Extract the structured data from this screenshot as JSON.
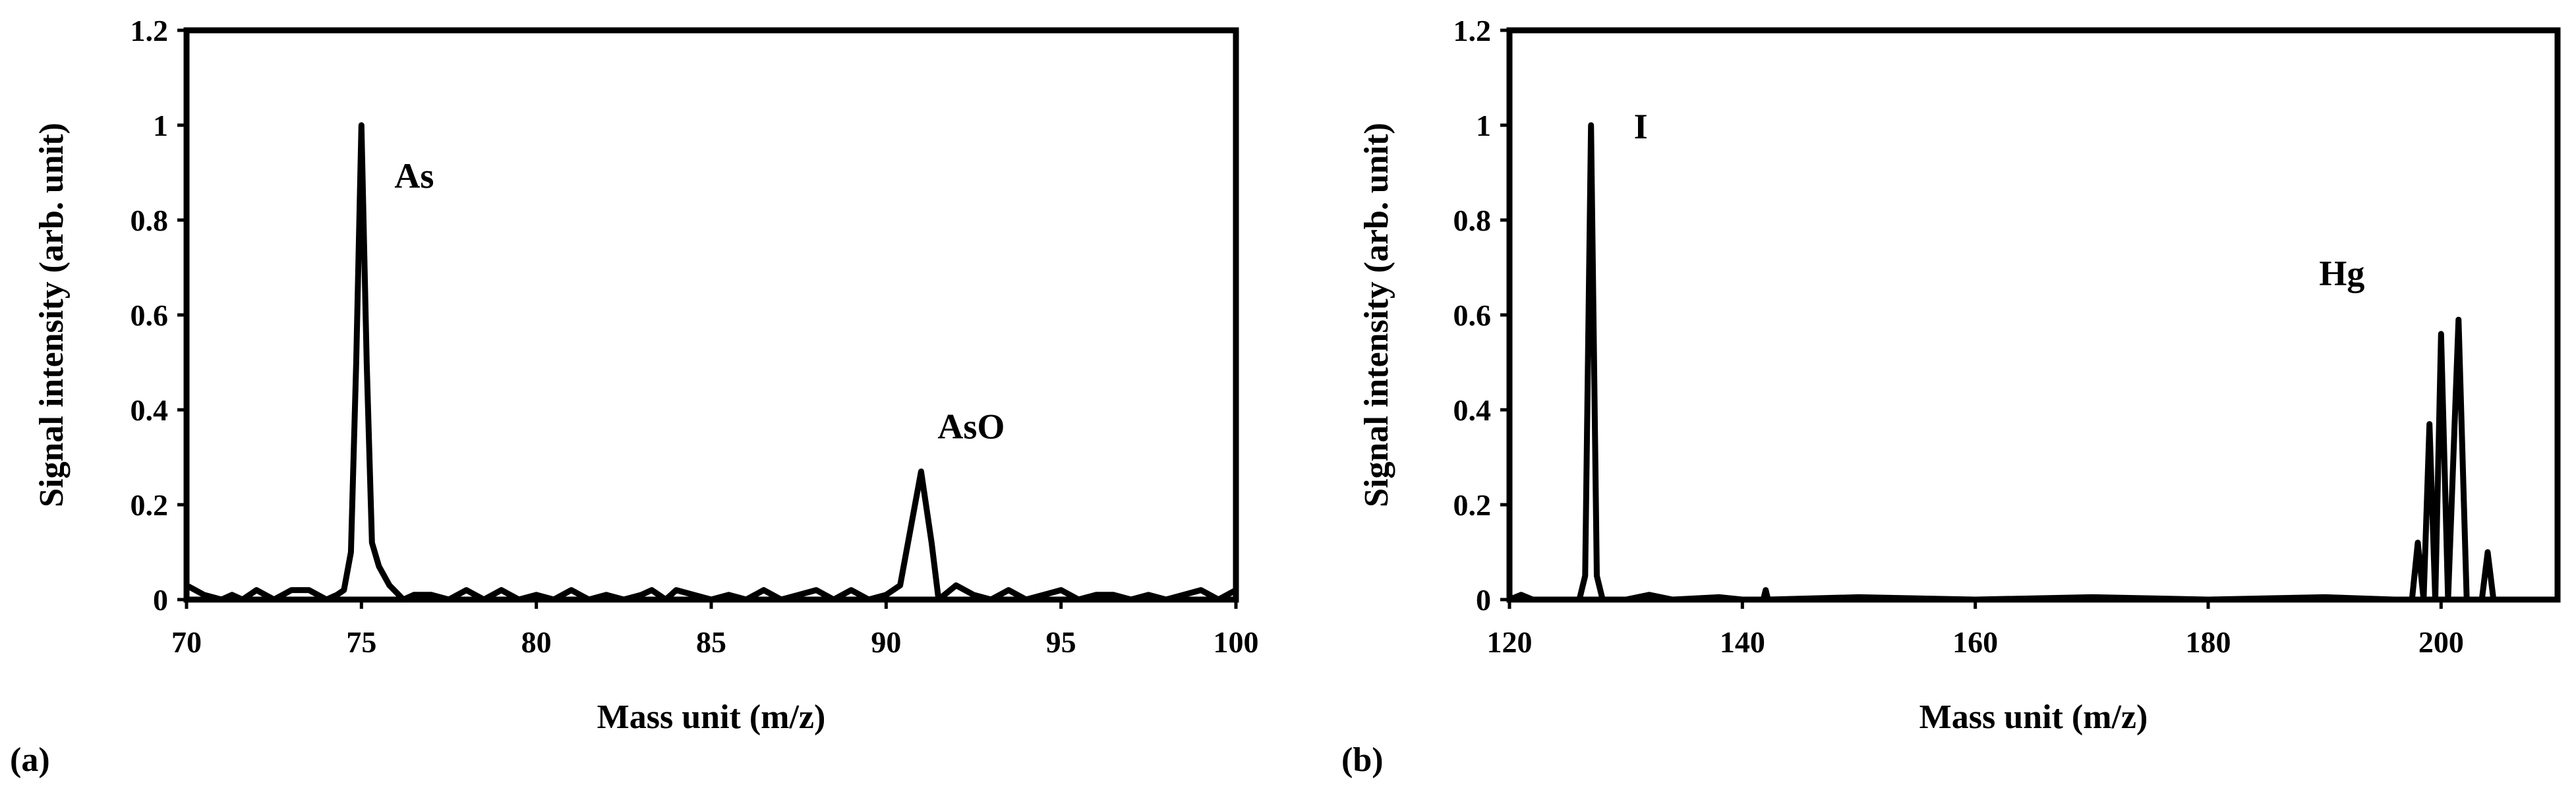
{
  "figure": {
    "panels": [
      "(a)",
      "(b)"
    ]
  },
  "chart_data": [
    {
      "type": "line",
      "panel_label": "(a)",
      "title": "",
      "xlabel": "Mass unit (m/z)",
      "ylabel": "Signal intensity (arb. unit)",
      "xlim": [
        70,
        100
      ],
      "ylim": [
        0,
        1.2
      ],
      "xticks": [
        70,
        75,
        80,
        85,
        90,
        95,
        100
      ],
      "yticks": [
        0,
        0.2,
        0.4,
        0.6,
        0.8,
        1,
        1.2
      ],
      "ytick_labels": [
        "0",
        "0.2",
        "0.4",
        "0.6",
        "0.8",
        "1",
        "1.2"
      ],
      "grid": false,
      "legend": "none",
      "annotations": [
        {
          "text": "As",
          "x": 75,
          "y": 1.0
        },
        {
          "text": "AsO",
          "x": 91,
          "y": 0.27
        }
      ],
      "series": [
        {
          "color": "#000000",
          "points": [
            [
              70,
              0.03
            ],
            [
              70.5,
              0.01
            ],
            [
              71,
              0.0
            ],
            [
              71.3,
              0.01
            ],
            [
              71.6,
              0.0
            ],
            [
              72,
              0.02
            ],
            [
              72.5,
              0.0
            ],
            [
              73,
              0.02
            ],
            [
              73.5,
              0.02
            ],
            [
              74,
              0.0
            ],
            [
              74.3,
              0.01
            ],
            [
              74.5,
              0.02
            ],
            [
              74.7,
              0.1
            ],
            [
              74.85,
              0.5
            ],
            [
              75,
              1.0
            ],
            [
              75.15,
              0.5
            ],
            [
              75.3,
              0.12
            ],
            [
              75.5,
              0.07
            ],
            [
              75.8,
              0.03
            ],
            [
              76.2,
              0.0
            ],
            [
              76.5,
              0.01
            ],
            [
              77,
              0.01
            ],
            [
              77.5,
              0.0
            ],
            [
              78,
              0.02
            ],
            [
              78.5,
              0.0
            ],
            [
              79,
              0.02
            ],
            [
              79.5,
              0.0
            ],
            [
              80,
              0.01
            ],
            [
              80.5,
              0.0
            ],
            [
              81,
              0.02
            ],
            [
              81.5,
              0.0
            ],
            [
              82,
              0.01
            ],
            [
              82.5,
              0.0
            ],
            [
              83,
              0.01
            ],
            [
              83.3,
              0.02
            ],
            [
              83.7,
              0.0
            ],
            [
              84,
              0.02
            ],
            [
              84.5,
              0.01
            ],
            [
              85,
              0.0
            ],
            [
              85.5,
              0.01
            ],
            [
              86,
              0.0
            ],
            [
              86.5,
              0.02
            ],
            [
              87,
              0.0
            ],
            [
              87.5,
              0.01
            ],
            [
              88,
              0.02
            ],
            [
              88.5,
              0.0
            ],
            [
              89,
              0.02
            ],
            [
              89.5,
              0.0
            ],
            [
              90,
              0.01
            ],
            [
              90.4,
              0.03
            ],
            [
              90.7,
              0.15
            ],
            [
              91,
              0.27
            ],
            [
              91.3,
              0.12
            ],
            [
              91.5,
              0.0
            ],
            [
              92,
              0.03
            ],
            [
              92.5,
              0.01
            ],
            [
              93,
              0.0
            ],
            [
              93.5,
              0.02
            ],
            [
              94,
              0.0
            ],
            [
              94.5,
              0.01
            ],
            [
              95,
              0.02
            ],
            [
              95.5,
              0.0
            ],
            [
              96,
              0.01
            ],
            [
              96.5,
              0.01
            ],
            [
              97,
              0.0
            ],
            [
              97.5,
              0.01
            ],
            [
              98,
              0.0
            ],
            [
              98.5,
              0.01
            ],
            [
              99,
              0.02
            ],
            [
              99.5,
              0.0
            ],
            [
              100,
              0.02
            ]
          ]
        }
      ]
    },
    {
      "type": "line",
      "panel_label": "(b)",
      "title": "",
      "xlabel": "Mass unit (m/z)",
      "ylabel": "Signal intensity (arb. unit)",
      "xlim": [
        120,
        210
      ],
      "ylim": [
        0,
        1.2
      ],
      "xticks": [
        120,
        140,
        160,
        180,
        200
      ],
      "yticks": [
        0,
        0.2,
        0.4,
        0.6,
        0.8,
        1,
        1.2
      ],
      "ytick_labels": [
        "0",
        "0.2",
        "0.4",
        "0.6",
        "0.8",
        "1",
        "1.2"
      ],
      "grid": false,
      "legend": "none",
      "annotations": [
        {
          "text": "I",
          "x": 127,
          "y": 1.0
        },
        {
          "text": "Hg",
          "x": 200,
          "y": 0.6
        }
      ],
      "series": [
        {
          "color": "#000000",
          "points": [
            [
              120,
              0.0
            ],
            [
              121,
              0.01
            ],
            [
              122,
              0.0
            ],
            [
              124,
              0.0
            ],
            [
              126,
              0.0
            ],
            [
              126.5,
              0.05
            ],
            [
              127,
              1.0
            ],
            [
              127.5,
              0.05
            ],
            [
              128,
              0.0
            ],
            [
              130,
              0.0
            ],
            [
              132,
              0.01
            ],
            [
              134,
              0.0
            ],
            [
              138,
              0.005
            ],
            [
              140,
              0.0
            ],
            [
              141.8,
              0.0
            ],
            [
              142,
              0.02
            ],
            [
              142.2,
              0.0
            ],
            [
              150,
              0.005
            ],
            [
              160,
              0.0
            ],
            [
              170,
              0.005
            ],
            [
              180,
              0.0
            ],
            [
              190,
              0.005
            ],
            [
              196,
              0.0
            ],
            [
              197.5,
              0.0
            ],
            [
              198,
              0.12
            ],
            [
              198.5,
              0.0
            ],
            [
              199,
              0.37
            ],
            [
              199.5,
              0.0
            ],
            [
              200,
              0.56
            ],
            [
              200.6,
              0.0
            ],
            [
              201.5,
              0.59
            ],
            [
              202.2,
              0.0
            ],
            [
              203.5,
              0.0
            ],
            [
              204,
              0.1
            ],
            [
              204.5,
              0.0
            ],
            [
              206,
              0.0
            ],
            [
              210,
              0.0
            ]
          ]
        }
      ]
    }
  ]
}
